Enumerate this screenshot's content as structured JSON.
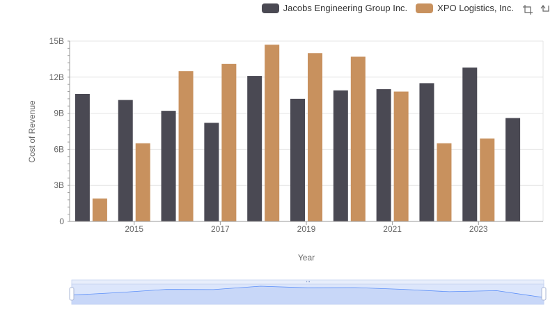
{
  "legend": {
    "items": [
      {
        "label": "Jacobs Engineering Group Inc.",
        "color": "#4a4953"
      },
      {
        "label": "XPO Logistics, Inc.",
        "color": "#c8915e"
      }
    ]
  },
  "toolbox": {
    "icons": [
      "zoom-icon",
      "zoom-reset-icon"
    ]
  },
  "chart_data": {
    "type": "bar",
    "xlabel": "Year",
    "ylabel": "Cost of Revenue",
    "categories": [
      "2014",
      "2015",
      "2016",
      "2017",
      "2018",
      "2019",
      "2020",
      "2021",
      "2022",
      "2023",
      "2024"
    ],
    "x_tick_labels": [
      "2015",
      "2017",
      "2019",
      "2021",
      "2023"
    ],
    "y_ticks": [
      0,
      3,
      6,
      9,
      12,
      15
    ],
    "y_tick_labels": [
      "0",
      "3B",
      "6B",
      "9B",
      "12B",
      "15B"
    ],
    "ylim": [
      0,
      15
    ],
    "y_unit": "B",
    "grid": true,
    "legend_position": "top-right",
    "series": [
      {
        "name": "Jacobs Engineering Group Inc.",
        "color": "#4a4953",
        "values": [
          10.6,
          10.1,
          9.2,
          8.2,
          12.1,
          10.2,
          10.9,
          11.0,
          11.5,
          12.8,
          8.6
        ]
      },
      {
        "name": "XPO Logistics, Inc.",
        "color": "#c8915e",
        "values": [
          1.9,
          6.5,
          12.5,
          13.1,
          14.7,
          14.0,
          13.7,
          10.8,
          6.5,
          6.9,
          null
        ]
      }
    ],
    "overview_color": "#5b8ff9"
  }
}
